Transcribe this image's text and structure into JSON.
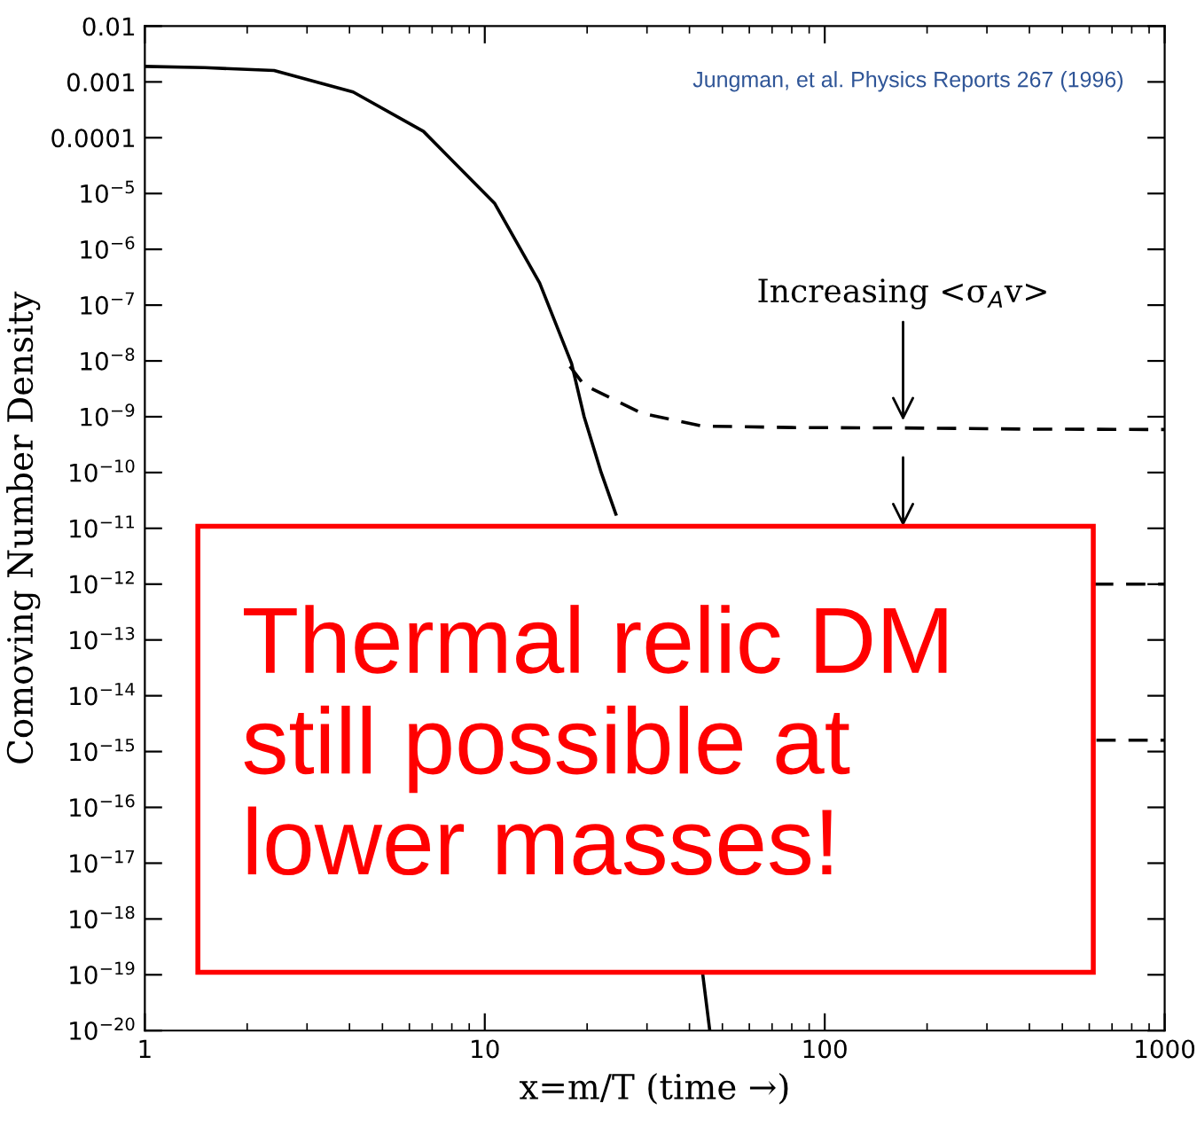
{
  "chart_data": {
    "type": "line",
    "xlabel": "x=m/T (time →)",
    "ylabel": "Comoving Number Density",
    "log": "xy",
    "grid": false,
    "legend": false,
    "marker": "none",
    "xlim": [
      1,
      1000
    ],
    "xticks": [
      1,
      10,
      100,
      1000
    ],
    "ylim": [
      1e-20,
      0.01
    ],
    "yticks": [
      {
        "value": 1e-20,
        "label": "10$^{−20}$"
      },
      {
        "value": 1e-19,
        "label": "10$^{−19}$"
      },
      {
        "value": 1e-18,
        "label": "10$^{−18}$"
      },
      {
        "value": 1e-17,
        "label": "10$^{−17}$"
      },
      {
        "value": 1e-16,
        "label": "10$^{−16}$"
      },
      {
        "value": 1e-15,
        "label": "10$^{−15}$"
      },
      {
        "value": 1e-14,
        "label": "10$^{−14}$"
      },
      {
        "value": 1e-13,
        "label": "10$^{−13}$"
      },
      {
        "value": 1e-12,
        "label": "10$^{−12}$"
      },
      {
        "value": 1e-11,
        "label": "10$^{−11}$"
      },
      {
        "value": 1e-10,
        "label": "10$^{−10}$"
      },
      {
        "value": 1e-09,
        "label": "10$^{−9}$"
      },
      {
        "value": 1e-08,
        "label": "10$^{−8}$"
      },
      {
        "value": 1e-07,
        "label": "10$^{−7}$"
      },
      {
        "value": 1e-06,
        "label": "10$^{−6}$"
      },
      {
        "value": 1e-05,
        "label": "10$^{−5}$"
      },
      {
        "value": 0.0001,
        "label": "0.0001"
      },
      {
        "value": 0.001,
        "label": "0.001"
      },
      {
        "value": 0.01,
        "label": "0.01"
      }
    ],
    "series": [
      {
        "color": "#000000",
        "line_style": "solid",
        "x": [
          1,
          1.5,
          2.4,
          4.1,
          6.6,
          10.7,
          14.5,
          18,
          19.6,
          22,
          24.3,
          30,
          43.7,
          45.9
        ],
        "values": [
          0.0019,
          0.0018,
          0.0016,
          0.00066,
          0.00013,
          6.6e-06,
          2.5e-07,
          9e-09,
          1e-09,
          1e-10,
          1.8e-11,
          null,
          1.1e-19,
          1e-20
        ]
      },
      {
        "color": "#000000",
        "line_style": "dashed",
        "x": [
          17.8,
          19.6,
          29,
          43.6,
          80,
          169,
          400,
          1000
        ],
        "values": [
          8e-09,
          3.7e-09,
          1.15e-09,
          6.8e-10,
          6.4e-10,
          6.3e-10,
          6e-10,
          5.9e-10
        ]
      },
      {
        "color": "#000000",
        "line_style": "dashed",
        "x": [
          620,
          1000
        ],
        "values": [
          1e-12,
          1e-12
        ]
      },
      {
        "color": "#000000",
        "line_style": "dashed",
        "x": [
          630,
          1000
        ],
        "values": [
          1.6e-15,
          1.6e-15
        ]
      }
    ],
    "annotations": [
      {
        "text": "Increasing <σ$_{A}$v>",
        "x": 170,
        "y": 6.3e-10
      },
      "Thermal relic DM\nstill possible at\nlower masses!",
      "Jungman, et al. Physics Reports 267 (1996)"
    ]
  }
}
